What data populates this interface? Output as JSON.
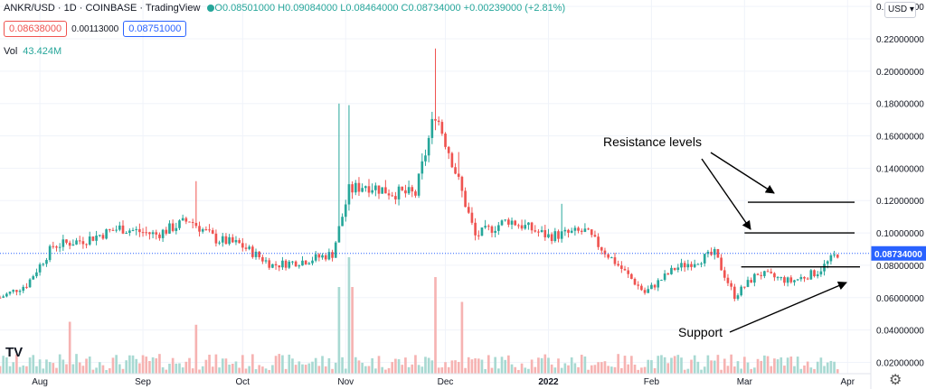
{
  "header": {
    "symbol": "ANKR/USD · 1D · COINBASE · TradingView",
    "ohlc": "O0.08501000 H0.09084000 L0.08464000 C0.08734000 +0.00239000 (+2.81%)"
  },
  "order": {
    "sell": "0.08638000",
    "spread": "0.00113000",
    "buy": "0.08751000"
  },
  "volume": {
    "label": "Vol",
    "value": "43.424M"
  },
  "currency": "USD ▾",
  "logo": "TV",
  "colors": {
    "up": "#26a69a",
    "down": "#ef5350",
    "up_vol": "#a8d9d2",
    "down_vol": "#f6b3b2",
    "last_price": "#2962ff"
  },
  "chart_data": {
    "type": "candlestick",
    "price_axis": {
      "ticks": [
        "0.24000000",
        "0.22000000",
        "0.20000000",
        "0.18000000",
        "0.16000000",
        "0.14000000",
        "0.12000000",
        "0.10000000",
        "0.08000000",
        "0.06000000",
        "0.04000000",
        "0.02000000"
      ],
      "values": [
        0.24,
        0.22,
        0.2,
        0.18,
        0.16,
        0.14,
        0.12,
        0.1,
        0.08,
        0.06,
        0.04,
        0.02
      ],
      "range": [
        0.013,
        0.244
      ]
    },
    "time_axis": {
      "ticks": [
        "Aug",
        "Sep",
        "Oct",
        "Nov",
        "Dec",
        "2022",
        "Feb",
        "Mar",
        "Apr"
      ],
      "dates": [
        "2021-08-01",
        "2021-09-01",
        "2021-10-01",
        "2021-11-01",
        "2021-12-01",
        "2022-01-01",
        "2022-02-01",
        "2022-03-01",
        "2022-04-01"
      ],
      "range": [
        "2021-07-20",
        "2022-04-08"
      ]
    },
    "last_price": {
      "label": "0.08734000",
      "value": 0.08734
    },
    "anchors": {
      "dates": [
        "2021-07-20",
        "2021-07-28",
        "2021-08-05",
        "2021-08-15",
        "2021-08-25",
        "2021-09-05",
        "2021-09-15",
        "2021-09-23",
        "2021-09-30",
        "2021-10-10",
        "2021-10-20",
        "2021-10-28",
        "2021-11-02",
        "2021-11-07",
        "2021-11-15",
        "2021-11-22",
        "2021-11-28",
        "2021-12-03",
        "2021-12-10",
        "2021-12-20",
        "2022-01-01",
        "2022-01-12",
        "2022-01-22",
        "2022-01-30",
        "2022-02-08",
        "2022-02-20",
        "2022-02-26",
        "2022-03-05",
        "2022-03-15",
        "2022-03-23",
        "2022-03-29"
      ],
      "close": [
        0.06,
        0.068,
        0.092,
        0.096,
        0.103,
        0.099,
        0.108,
        0.096,
        0.093,
        0.08,
        0.083,
        0.087,
        0.126,
        0.13,
        0.125,
        0.124,
        0.175,
        0.145,
        0.098,
        0.108,
        0.098,
        0.101,
        0.08,
        0.063,
        0.078,
        0.087,
        0.061,
        0.075,
        0.07,
        0.076,
        0.0873
      ]
    },
    "annotations": {
      "resistance_label": "Resistance levels",
      "support_label": "Support",
      "resistance_levels": [
        0.119,
        0.1
      ],
      "support_level": 0.079
    },
    "grid": true
  }
}
